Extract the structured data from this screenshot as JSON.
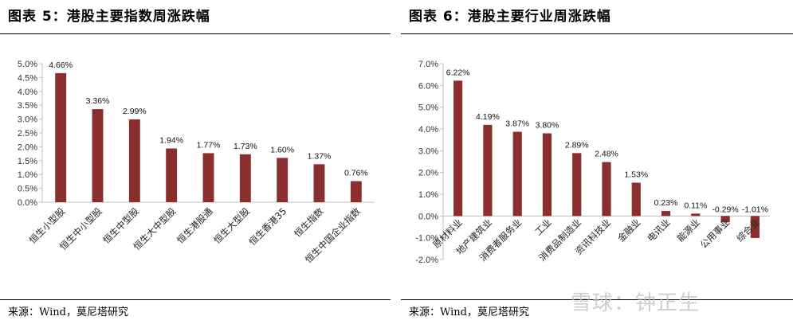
{
  "panels": [
    {
      "title": "图表 5：港股主要指数周涨跌幅",
      "source": "来源：Wind，莫尼塔研究"
    },
    {
      "title": "图表 6：港股主要行业周涨跌幅",
      "source": "来源：Wind，莫尼塔研究"
    }
  ],
  "watermark": "雪球：钟正生",
  "colors": {
    "bar": "#8B2E2E",
    "axis": "#bfbfbf"
  },
  "chart_data": [
    {
      "type": "bar",
      "title": "",
      "categories": [
        "恒生小型股",
        "恒生中小型股",
        "恒生中型股",
        "恒生大中型股",
        "恒生港股通",
        "恒生大型股",
        "恒生香港35",
        "恒生指数",
        "恒生中国企业指数"
      ],
      "values": [
        4.66,
        3.36,
        2.99,
        1.94,
        1.77,
        1.73,
        1.6,
        1.37,
        0.76
      ],
      "value_labels": [
        "4.66%",
        "3.36%",
        "2.99%",
        "1.94%",
        "1.77%",
        "1.73%",
        "1.60%",
        "1.37%",
        "0.76%"
      ],
      "ylim": [
        0,
        5
      ],
      "yticks": [
        "0.0%",
        "0.5%",
        "1.0%",
        "1.5%",
        "2.0%",
        "2.5%",
        "3.0%",
        "3.5%",
        "4.0%",
        "4.5%",
        "5.0%"
      ],
      "grid": false
    },
    {
      "type": "bar",
      "title": "",
      "categories": [
        "原材料业",
        "地产建筑业",
        "消费者服务业",
        "工业",
        "消费品制造业",
        "资讯科技业",
        "金融业",
        "电讯业",
        "能源业",
        "公用事业",
        "综合业"
      ],
      "values": [
        6.22,
        4.19,
        3.87,
        3.8,
        2.89,
        2.48,
        1.53,
        0.23,
        0.11,
        -0.29,
        -1.01
      ],
      "value_labels": [
        "6.22%",
        "4.19%",
        "3.87%",
        "3.80%",
        "2.89%",
        "2.48%",
        "1.53%",
        "0.23%",
        "0.11%",
        "-0.29%",
        "-1.01%"
      ],
      "ylim": [
        -2,
        7
      ],
      "yticks": [
        "-2.0%",
        "-1.0%",
        "0.0%",
        "1.0%",
        "2.0%",
        "3.0%",
        "4.0%",
        "5.0%",
        "6.0%",
        "7.0%"
      ],
      "grid": false
    }
  ]
}
